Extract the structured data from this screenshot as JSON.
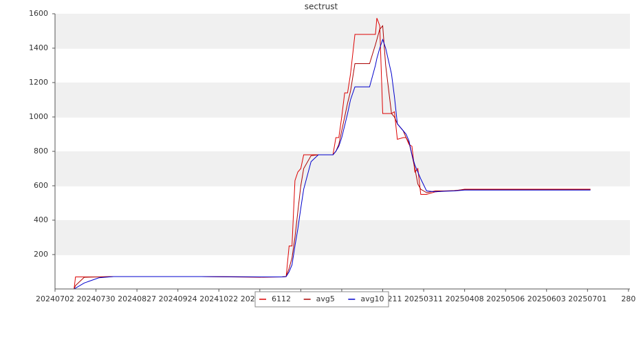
{
  "chart_data": {
    "type": "line",
    "title": "sectrust",
    "x": [
      "20240715",
      "20240716",
      "20240722",
      "20240801",
      "20240811",
      "20240831",
      "20240920",
      "20241010",
      "20241119",
      "20241204",
      "20241207",
      "20241209",
      "20241211",
      "20241213",
      "20241215",
      "20241217",
      "20241219",
      "20241224",
      "20241229",
      "20250108",
      "20250110",
      "20250112",
      "20250114",
      "20250116",
      "20250118",
      "20250120",
      "20250123",
      "20250128",
      "20250202",
      "20250206",
      "20250207",
      "20250209",
      "20250211",
      "20250213",
      "20250217",
      "20250219",
      "20250221",
      "20250225",
      "20250227",
      "20250301",
      "20250303",
      "20250305",
      "20250307",
      "20250309",
      "20250313",
      "20250319",
      "20250325",
      "20250401",
      "20250408",
      "20250428",
      "20250703"
    ],
    "series": [
      {
        "name": "6112",
        "color": "#dd0000",
        "values": [
          0,
          70,
          70,
          70,
          72,
          72,
          72,
          72,
          68,
          70,
          72,
          250,
          250,
          630,
          680,
          700,
          780,
          780,
          780,
          780,
          880,
          880,
          1000,
          1140,
          1140,
          1250,
          1480,
          1480,
          1480,
          1480,
          1575,
          1530,
          1020,
          1020,
          1020,
          1030,
          870,
          880,
          880,
          840,
          830,
          680,
          700,
          550,
          550,
          565,
          570,
          570,
          580,
          580,
          580
        ]
      },
      {
        "name": "avg5",
        "color": "#aa0000",
        "values": [
          0,
          20,
          68,
          70,
          72,
          72,
          72,
          72,
          70,
          70,
          72,
          120,
          180,
          300,
          450,
          600,
          700,
          775,
          780,
          780,
          800,
          840,
          920,
          1000,
          1080,
          1150,
          1310,
          1310,
          1310,
          1420,
          1450,
          1510,
          1530,
          1300,
          1020,
          1000,
          960,
          920,
          880,
          850,
          780,
          700,
          610,
          580,
          560,
          570,
          570,
          572,
          578,
          578,
          578
        ]
      },
      {
        "name": "avg10",
        "color": "#0000cc",
        "values": [
          0,
          5,
          35,
          65,
          72,
          72,
          72,
          72,
          70,
          70,
          72,
          100,
          140,
          250,
          350,
          470,
          580,
          740,
          780,
          780,
          800,
          830,
          880,
          950,
          1020,
          1100,
          1175,
          1175,
          1175,
          1300,
          1340,
          1400,
          1450,
          1400,
          1250,
          1120,
          960,
          920,
          900,
          860,
          780,
          720,
          680,
          640,
          570,
          565,
          568,
          570,
          575,
          575,
          575
        ]
      }
    ],
    "xlim": [
      "20240702",
      "20250730"
    ],
    "xticks": [
      "20240702",
      "20240730",
      "20240827",
      "20240924",
      "20241022",
      "20241119",
      "20241217",
      "20250114",
      "20250211",
      "20250311",
      "20250408",
      "20250506",
      "20250603",
      "20250701",
      {
        "value": "20250729",
        "label": "280"
      }
    ],
    "ylim": [
      0,
      1600
    ],
    "yticks": [
      200,
      400,
      600,
      800,
      1000,
      1200,
      1400,
      1600
    ],
    "grid_bands": true,
    "legend": "bottom"
  }
}
